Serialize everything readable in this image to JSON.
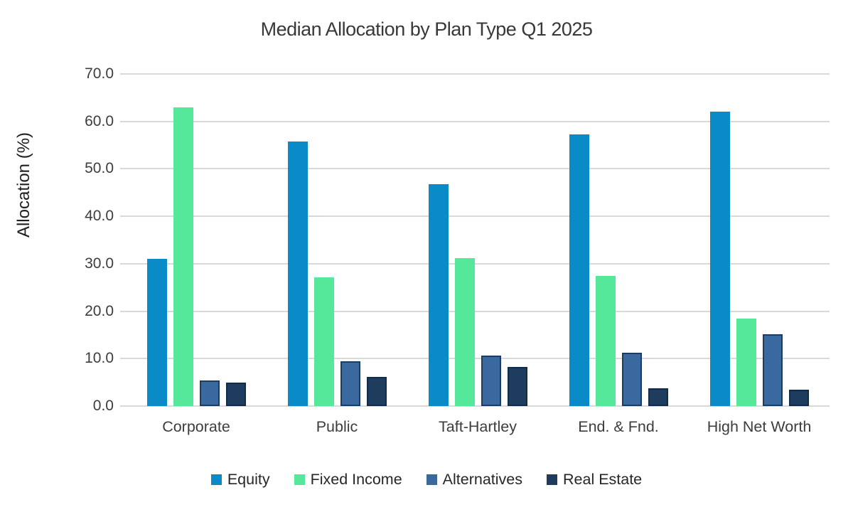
{
  "title": "Median Allocation by Plan Type Q1 2025",
  "chart_data": {
    "type": "bar",
    "title": "Median Allocation by Plan Type Q1 2025",
    "xlabel": "",
    "ylabel": "Allocation (%)",
    "ylim": [
      0,
      70
    ],
    "ytick_interval": 10,
    "ytick_labels": [
      "70.0",
      "60.0",
      "50.0",
      "40.0",
      "30.0",
      "20.0",
      "10.0",
      "0.0"
    ],
    "grid": true,
    "legend_position": "bottom",
    "categories": [
      "Corporate",
      "Public",
      "Taft-Hartley",
      "End. & Fnd.",
      "High Net Worth"
    ],
    "series": [
      {
        "name": "Equity",
        "color": "#0a8ac6",
        "border_color": "#0a8ac6",
        "values": [
          31.0,
          55.7,
          46.8,
          57.3,
          62.0
        ]
      },
      {
        "name": "Fixed Income",
        "color": "#55e89a",
        "border_color": "#55e89a",
        "values": [
          63.0,
          27.1,
          31.2,
          27.5,
          18.5
        ]
      },
      {
        "name": "Alternatives",
        "color": "#3a69a0",
        "border_color": "#1d3c60",
        "values": [
          5.4,
          9.5,
          10.7,
          11.2,
          15.1
        ]
      },
      {
        "name": "Real Estate",
        "color": "#1e3d5e",
        "border_color": "#122c45",
        "values": [
          5.0,
          6.1,
          8.2,
          3.7,
          3.5
        ]
      }
    ]
  },
  "colors": {
    "background": "#ffffff",
    "gridline": "#d9d9d9",
    "axis_line": "#d9d9d9",
    "label_text": "#3d3d3d",
    "title_text": "#383838"
  }
}
